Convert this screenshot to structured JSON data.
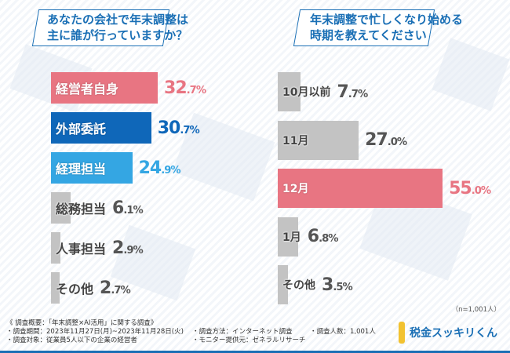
{
  "colors": {
    "pink": "#e87582",
    "blue": "#0f67b9",
    "light_blue": "#34a6e3",
    "gray": "#c3c3c3",
    "gray_text": "#555555"
  },
  "chart_data": [
    {
      "type": "bar",
      "orientation": "horizontal",
      "title": "あなたの会社で年末調整は主に誰が行っていますか？",
      "title_lines": [
        "あなたの会社で年末調整は",
        "主に誰が行っていますか？"
      ],
      "categories": [
        "経営者自身",
        "外部委託",
        "経理担当",
        "総務担当",
        "人事担当",
        "その他"
      ],
      "values": [
        32.7,
        30.7,
        24.9,
        6.1,
        2.9,
        2.7
      ],
      "bar_colors": [
        "pink",
        "blue",
        "light_blue",
        "gray",
        "gray",
        "gray"
      ],
      "unit": "%"
    },
    {
      "type": "bar",
      "orientation": "horizontal",
      "title": "年末調整で忙しくなり始める時期を教えてください",
      "title_lines": [
        "年末調整で忙しくなり始める",
        "時期を教えてください"
      ],
      "categories": [
        "10月以前",
        "11月",
        "12月",
        "1月",
        "その他"
      ],
      "values": [
        7.7,
        27.0,
        55.0,
        6.8,
        3.5
      ],
      "bar_colors": [
        "gray",
        "gray",
        "pink",
        "gray",
        "gray"
      ],
      "unit": "%",
      "note": "（n=1,001人）"
    }
  ],
  "footer": {
    "heading": "《 調査概要：「年末調整×AI活用」に関する調査》",
    "period": "・調査期間：2023年11月27日(月)~2023年11月28日(火)",
    "target": "・調査対象：従業員5人以下の企業の経営者",
    "method": "・調査方法：インターネット調査",
    "provider": "・モニター提供元：ゼネラルリサーチ",
    "count": "・調査人数：1,001人"
  },
  "logo": {
    "text": "税金スッキリくん"
  }
}
